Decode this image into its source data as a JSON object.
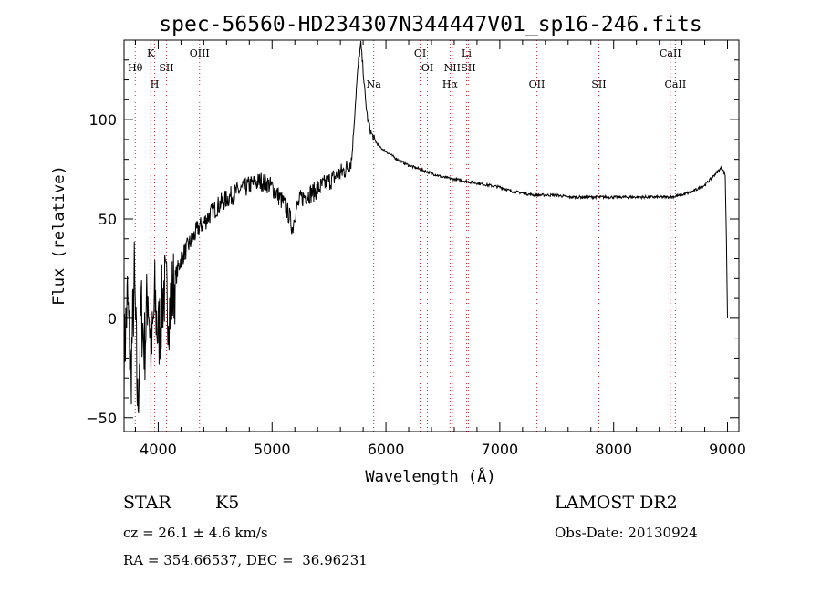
{
  "chart_data": {
    "type": "line",
    "title": "spec-56560-HD234307N344447V01_sp16-246.fits",
    "xlabel": "Wavelength (Å)",
    "ylabel": "Flux (relative)",
    "xlim": [
      3700,
      9100
    ],
    "ylim": [
      -57,
      140
    ],
    "x_ticks": [
      4000,
      5000,
      6000,
      7000,
      8000,
      9000
    ],
    "y_ticks": [
      -50,
      0,
      50,
      100
    ],
    "grid": false,
    "series": [
      {
        "x": [
          3700,
          3730,
          3760,
          3790,
          3820,
          3850,
          3880,
          3910,
          3940,
          3970,
          4000,
          4050,
          4100,
          4150,
          4200,
          4250,
          4300,
          4350,
          4400,
          4450,
          4500,
          4550,
          4600,
          4650,
          4700,
          4750,
          4800,
          4850,
          4900,
          4950,
          5000,
          5050,
          5100,
          5150,
          5180,
          5200,
          5250,
          5300,
          5350,
          5400,
          5450,
          5500,
          5550,
          5600,
          5650,
          5700,
          5740,
          5760,
          5780,
          5800,
          5820,
          5840,
          5860,
          5880,
          5900,
          5920,
          5950,
          6000,
          6100,
          6200,
          6300,
          6400,
          6500,
          6600,
          6700,
          6800,
          6900,
          7000,
          7100,
          7200,
          7300,
          7400,
          7500,
          7600,
          7700,
          7800,
          7900,
          8000,
          8100,
          8200,
          8300,
          8400,
          8500,
          8600,
          8700,
          8800,
          8850,
          8900,
          8950,
          8980,
          8990,
          9000
        ],
        "y": [
          -20,
          10,
          -30,
          20,
          -45,
          5,
          -15,
          15,
          -20,
          10,
          -10,
          15,
          5,
          20,
          30,
          35,
          40,
          45,
          48,
          52,
          55,
          58,
          60,
          62,
          64,
          65,
          67,
          68,
          69,
          68,
          66,
          62,
          58,
          52,
          45,
          53,
          60,
          62,
          63,
          65,
          67,
          69,
          71,
          73,
          75,
          80,
          115,
          130,
          138,
          125,
          110,
          100,
          95,
          92,
          90,
          88,
          86,
          84,
          80,
          77,
          75,
          73,
          71,
          70,
          69,
          68,
          67,
          66,
          64,
          63,
          62,
          62,
          62,
          61,
          61,
          61,
          61,
          61,
          61,
          61,
          61,
          61,
          61,
          62,
          64,
          67,
          70,
          73,
          76,
          72,
          40,
          0
        ]
      }
    ],
    "lines": [
      {
        "name": "Hθ",
        "wavelength": 3798,
        "row": 2
      },
      {
        "name": "K",
        "wavelength": 3934,
        "row": 1
      },
      {
        "name": "H",
        "wavelength": 3969,
        "row": 3
      },
      {
        "name": "SII",
        "wavelength": 4072,
        "row": 2
      },
      {
        "name": "OIII",
        "wavelength": 4363,
        "row": 1
      },
      {
        "name": "Na",
        "wavelength": 5893,
        "row": 3
      },
      {
        "name": "OI",
        "wavelength": 6300,
        "row": 1
      },
      {
        "name": "OI",
        "wavelength": 6364,
        "row": 2
      },
      {
        "name": "Hα",
        "wavelength": 6563,
        "row": 3
      },
      {
        "name": "NII",
        "wavelength": 6583,
        "row": 2
      },
      {
        "name": "Li",
        "wavelength": 6708,
        "row": 1
      },
      {
        "name": "SII",
        "wavelength": 6724,
        "row": 2
      },
      {
        "name": "OII",
        "wavelength": 7325,
        "row": 3
      },
      {
        "name": "SII",
        "wavelength": 7870,
        "row": 3
      },
      {
        "name": "CaII",
        "wavelength": 8498,
        "row": 1
      },
      {
        "name": "CaII",
        "wavelength": 8542,
        "row": 3
      }
    ]
  },
  "info": {
    "class_label": "STAR",
    "subclass": "K5",
    "survey": "LAMOST DR2",
    "cz": "cz = 26.1 ± 4.6 km/s",
    "obs_date": "Obs-Date: 20130924",
    "coords": "RA = 354.66537, DEC =  36.96231"
  },
  "colors": {
    "line_marker": "#c03030",
    "spectrum": "#000000"
  }
}
